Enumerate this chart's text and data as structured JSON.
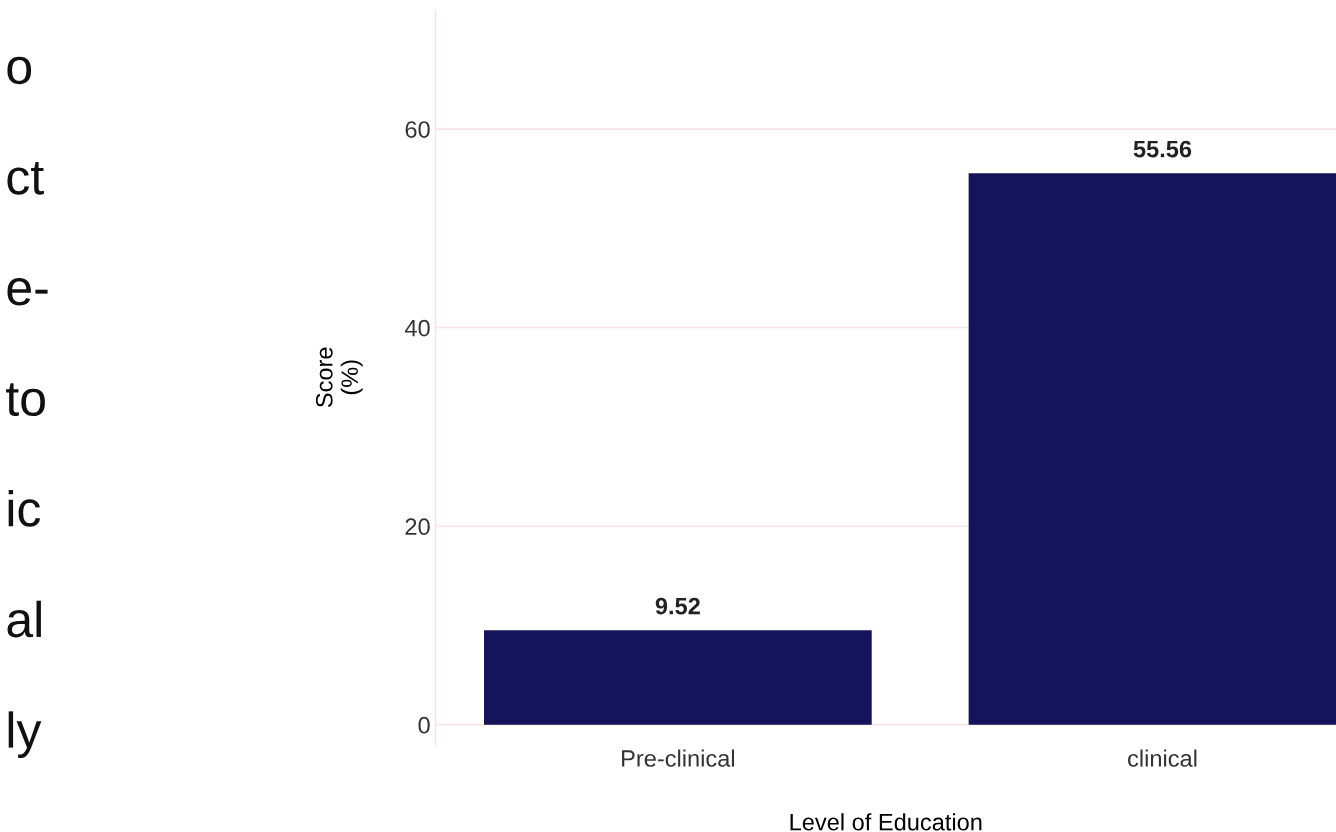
{
  "chart_data": {
    "type": "bar",
    "xlabel": "Level of Education",
    "ylabel": "Score\n(%)",
    "categories": [
      "Pre-clinical",
      "clinical"
    ],
    "values": [
      9.52,
      55.56
    ],
    "color": "#13145a",
    "data_labels": true,
    "ylim": [
      -2,
      72
    ],
    "yticks": [
      0,
      20,
      40,
      60
    ],
    "grid": "y",
    "annotations": [
      "o",
      "ct",
      "e-",
      "to",
      "ic",
      "al",
      "ly"
    ]
  }
}
